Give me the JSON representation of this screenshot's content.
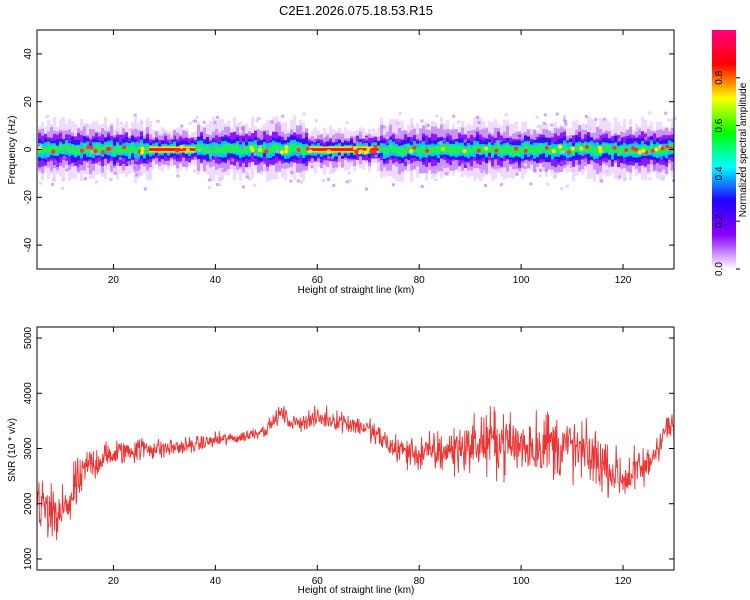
{
  "chart_data": [
    {
      "type": "heatmap",
      "title": "C2E1.2026.075.18.53.R15",
      "xlabel": "Height of straight line (km)",
      "ylabel": "Frequency (Hz)",
      "xlim": [
        5,
        130
      ],
      "ylim": [
        -50,
        50
      ],
      "xticks": [
        20,
        40,
        60,
        80,
        100,
        120
      ],
      "yticks": [
        -40,
        -20,
        0,
        20,
        40
      ],
      "band_center_hz": 0,
      "band_halfwidth_hz": 5,
      "peak_segments_km": [
        [
          27,
          36
        ],
        [
          58,
          72
        ]
      ],
      "colorbar": {
        "label": "Normalized spectral amplitude",
        "range": [
          0,
          1
        ],
        "ticks": [
          "0.0",
          "0.2",
          "0.4",
          "0.6",
          "0.8"
        ],
        "colormap": [
          "#ffffff",
          "#8a00ff",
          "#2200ff",
          "#00ffff",
          "#00ff00",
          "#ffff00",
          "#ff0000",
          "#ff0080"
        ]
      }
    },
    {
      "type": "line",
      "xlabel": "Height of straight line (km)",
      "ylabel": "SNR (10 * v/v)",
      "xlim": [
        5,
        130
      ],
      "ylim": [
        800,
        5200
      ],
      "xticks": [
        20,
        40,
        60,
        80,
        100,
        120
      ],
      "yticks": [
        1000,
        2000,
        3000,
        4000,
        5000
      ],
      "series": [
        {
          "name": "SNR",
          "color": "#ee3333",
          "x": [
            5,
            8,
            10,
            15,
            20,
            25,
            30,
            35,
            40,
            45,
            50,
            53,
            55,
            60,
            65,
            70,
            75,
            80,
            85,
            90,
            95,
            100,
            105,
            110,
            115,
            120,
            125,
            128,
            130
          ],
          "y": [
            2100,
            1700,
            1800,
            2700,
            2900,
            3000,
            3000,
            3050,
            3150,
            3200,
            3350,
            3650,
            3450,
            3550,
            3500,
            3350,
            3000,
            2900,
            2950,
            3050,
            3150,
            3050,
            3100,
            3000,
            2800,
            2450,
            2700,
            3300,
            3450
          ],
          "spread": [
            600,
            900,
            800,
            450,
            350,
            300,
            250,
            200,
            180,
            150,
            160,
            200,
            200,
            250,
            250,
            280,
            350,
            450,
            550,
            650,
            750,
            800,
            850,
            800,
            700,
            600,
            500,
            400,
            450
          ]
        }
      ]
    }
  ]
}
